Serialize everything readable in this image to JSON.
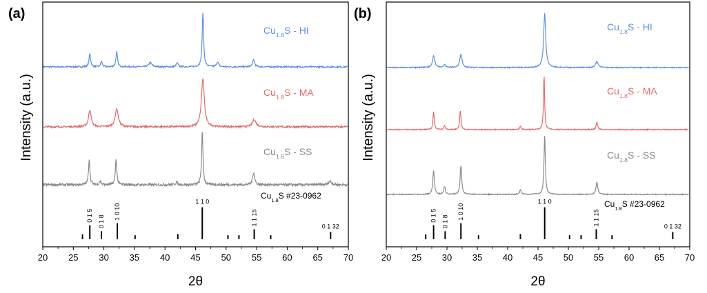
{
  "chart_data": [
    {
      "type": "line",
      "panel_label": "(a)",
      "xlabel": "2θ",
      "ylabel": "Intensity (a.u.)",
      "xlim": [
        20,
        70
      ],
      "xticks": [
        20,
        25,
        30,
        35,
        40,
        45,
        50,
        55,
        60,
        65,
        70
      ],
      "grid": false,
      "series": [
        {
          "name_main": "Cu",
          "name_sub": "1.8",
          "name_tail": "S - HI",
          "color": "#5b8ee6",
          "offset": 2.2,
          "noise": 0.012,
          "peaks": [
            [
              27.7,
              0.22,
              0.15
            ],
            [
              29.6,
              0.09,
              0.15
            ],
            [
              32.1,
              0.25,
              0.15
            ],
            [
              37.6,
              0.07,
              0.3
            ],
            [
              42.0,
              0.06,
              0.2
            ],
            [
              46.2,
              0.9,
              0.14
            ],
            [
              48.6,
              0.08,
              0.2
            ],
            [
              54.5,
              0.12,
              0.2
            ]
          ]
        },
        {
          "name_main": "Cu",
          "name_sub": "1.8",
          "name_tail": "S - MA",
          "color": "#e86868",
          "offset": 1.05,
          "noise": 0.015,
          "peaks": [
            [
              27.7,
              0.28,
              0.25
            ],
            [
              32.1,
              0.3,
              0.3
            ],
            [
              46.2,
              0.8,
              0.28
            ],
            [
              54.6,
              0.12,
              0.35
            ]
          ]
        },
        {
          "name_main": "Cu",
          "name_sub": "1.8",
          "name_tail": "S - SS",
          "color": "#8a8a8a",
          "offset": 0.0,
          "noise": 0.02,
          "peaks": [
            [
              27.6,
              0.42,
              0.14
            ],
            [
              29.4,
              0.06,
              0.15
            ],
            [
              32.0,
              0.42,
              0.14
            ],
            [
              41.9,
              0.05,
              0.15
            ],
            [
              46.1,
              0.9,
              0.13
            ],
            [
              54.5,
              0.2,
              0.2
            ],
            [
              67.0,
              0.06,
              0.3
            ]
          ]
        }
      ],
      "reference": {
        "name_main": "Cu",
        "name_sub": "1.8",
        "name_tail": "S #23-0962",
        "lines": [
          {
            "x": 26.5,
            "h": 0.12,
            "label": ""
          },
          {
            "x": 27.7,
            "h": 0.35,
            "label": "0 1 5"
          },
          {
            "x": 29.6,
            "h": 0.2,
            "label": "0 1 8"
          },
          {
            "x": 32.2,
            "h": 0.4,
            "label": "1 0 10"
          },
          {
            "x": 35.1,
            "h": 0.1,
            "label": ""
          },
          {
            "x": 42.1,
            "h": 0.13,
            "label": ""
          },
          {
            "x": 46.1,
            "h": 0.8,
            "label": "1 1 0"
          },
          {
            "x": 50.3,
            "h": 0.1,
            "label": ""
          },
          {
            "x": 52.1,
            "h": 0.1,
            "label": ""
          },
          {
            "x": 54.6,
            "h": 0.25,
            "label": "1 1 15"
          },
          {
            "x": 57.3,
            "h": 0.1,
            "label": ""
          },
          {
            "x": 67.1,
            "h": 0.18,
            "label": "0 1 32"
          }
        ]
      }
    },
    {
      "type": "line",
      "panel_label": "(b)",
      "xlabel": "2θ",
      "ylabel": "Intensity (a.u.)",
      "xlim": [
        20,
        70
      ],
      "xticks": [
        20,
        25,
        30,
        35,
        40,
        45,
        50,
        55,
        60,
        65,
        70
      ],
      "grid": false,
      "series": [
        {
          "name_main": "Cu",
          "name_sub": "1.8",
          "name_tail": "S - HI",
          "color": "#5b8ee6",
          "offset": 2.2,
          "noise": 0.008,
          "peaks": [
            [
              27.8,
              0.2,
              0.22
            ],
            [
              29.6,
              0.05,
              0.2
            ],
            [
              32.3,
              0.22,
              0.22
            ],
            [
              46.1,
              0.9,
              0.2
            ],
            [
              54.7,
              0.1,
              0.25
            ]
          ]
        },
        {
          "name_main": "Cu",
          "name_sub": "1.8",
          "name_tail": "S - MA",
          "color": "#e86868",
          "offset": 1.1,
          "noise": 0.008,
          "peaks": [
            [
              27.8,
              0.3,
              0.12
            ],
            [
              29.6,
              0.07,
              0.12
            ],
            [
              32.2,
              0.32,
              0.12
            ],
            [
              42.1,
              0.06,
              0.12
            ],
            [
              46.0,
              0.9,
              0.11
            ],
            [
              54.7,
              0.12,
              0.15
            ]
          ]
        },
        {
          "name_main": "Cu",
          "name_sub": "1.8",
          "name_tail": "S - SS",
          "color": "#8a8a8a",
          "offset": 0.0,
          "noise": 0.008,
          "peaks": [
            [
              27.8,
              0.4,
              0.15
            ],
            [
              29.6,
              0.13,
              0.15
            ],
            [
              32.3,
              0.48,
              0.15
            ],
            [
              42.1,
              0.08,
              0.15
            ],
            [
              46.1,
              0.98,
              0.13
            ],
            [
              54.7,
              0.2,
              0.18
            ]
          ]
        }
      ],
      "reference": {
        "name_main": "Cu",
        "name_sub": "1.8",
        "name_tail": "S #23-0962",
        "lines": [
          {
            "x": 26.5,
            "h": 0.12,
            "label": ""
          },
          {
            "x": 27.8,
            "h": 0.35,
            "label": "0 1 5"
          },
          {
            "x": 29.7,
            "h": 0.2,
            "label": "0 1 8"
          },
          {
            "x": 32.3,
            "h": 0.4,
            "label": "1 0 10"
          },
          {
            "x": 35.2,
            "h": 0.1,
            "label": ""
          },
          {
            "x": 42.1,
            "h": 0.13,
            "label": ""
          },
          {
            "x": 46.1,
            "h": 0.8,
            "label": "1 1 0"
          },
          {
            "x": 50.2,
            "h": 0.1,
            "label": ""
          },
          {
            "x": 52.1,
            "h": 0.1,
            "label": ""
          },
          {
            "x": 54.6,
            "h": 0.25,
            "label": "1 1 15"
          },
          {
            "x": 57.2,
            "h": 0.1,
            "label": ""
          },
          {
            "x": 67.2,
            "h": 0.18,
            "label": "0 1 32"
          }
        ]
      }
    }
  ]
}
